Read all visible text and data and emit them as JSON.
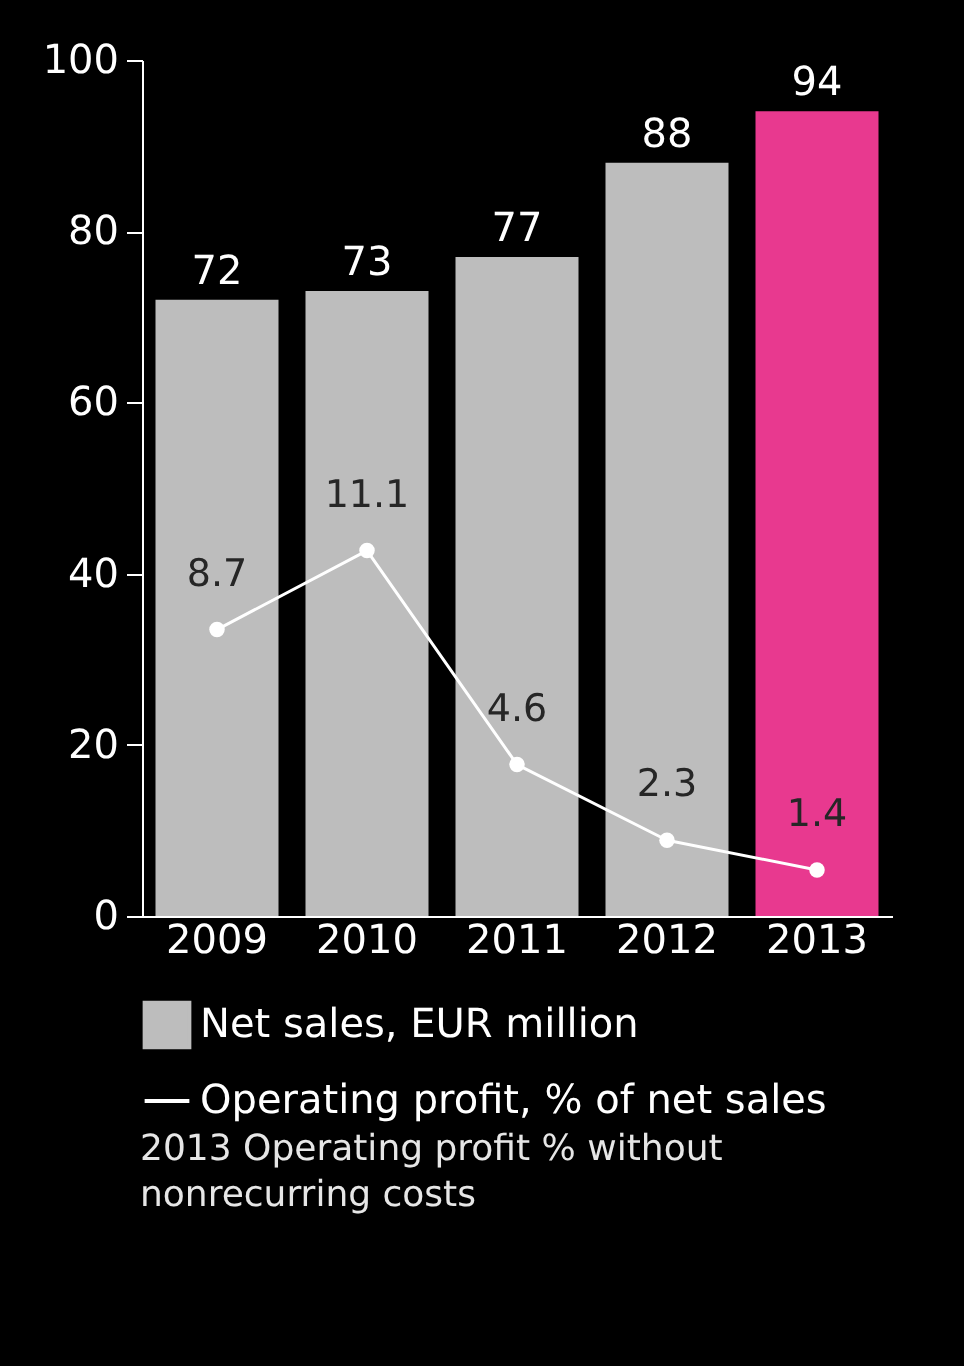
{
  "chart_data": {
    "type": "bar",
    "categories": [
      "2009",
      "2010",
      "2011",
      "2012",
      "2013"
    ],
    "series": [
      {
        "name": "Net sales, EUR million",
        "type": "bar",
        "color": "#bdbdbd",
        "colors": [
          "#bdbdbd",
          "#bdbdbd",
          "#bdbdbd",
          "#bdbdbd",
          "#e8398f"
        ],
        "values": [
          72,
          73,
          77,
          88,
          94
        ]
      },
      {
        "name": "Operating profit, % of net sales",
        "type": "line",
        "axis": "y2",
        "color": "#ffffff",
        "values": [
          8.7,
          11.1,
          4.6,
          2.3,
          1.4
        ]
      }
    ],
    "ylim": [
      0,
      100
    ],
    "yticks": [
      0,
      20,
      40,
      60,
      80,
      100
    ],
    "y2lim": [
      0,
      26
    ],
    "data_labels": true,
    "marker": "circle",
    "legend": "bottom",
    "grid": false,
    "annotations": [
      "2013 Operating profit % without nonrecurring costs"
    ]
  }
}
